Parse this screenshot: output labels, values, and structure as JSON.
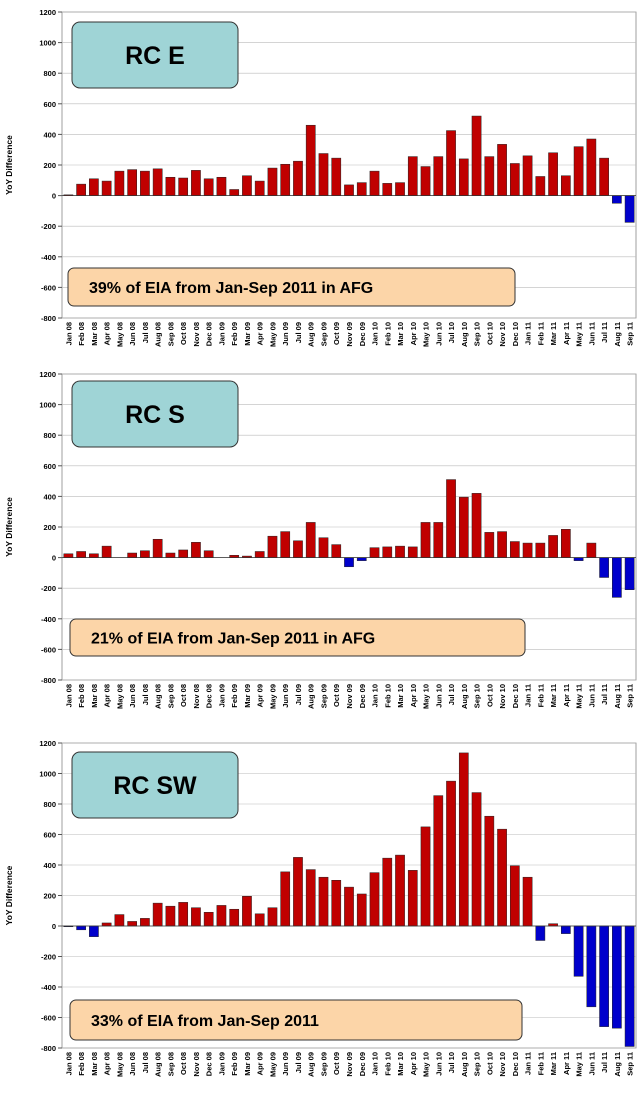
{
  "chart_data": [
    {
      "type": "bar",
      "title": "RC E",
      "annotation": "39% of EIA from Jan-Sep 2011 in AFG",
      "y_label": "YoY Difference",
      "categories": [
        "Jan 08",
        "Feb 08",
        "Mar 08",
        "Apr 08",
        "May 08",
        "Jun 08",
        "Jul 08",
        "Aug 08",
        "Sep 08",
        "Oct 08",
        "Nov 08",
        "Dec 08",
        "Jan 09",
        "Feb 09",
        "Mar 09",
        "Apr 09",
        "May 09",
        "Jun 09",
        "Jul 09",
        "Aug 09",
        "Sep 09",
        "Oct 09",
        "Nov 09",
        "Dec 09",
        "Jan 10",
        "Feb 10",
        "Mar 10",
        "Apr 10",
        "May 10",
        "Jun 10",
        "Jul 10",
        "Aug 10",
        "Sep 10",
        "Oct 10",
        "Nov 10",
        "Dec 10",
        "Jan 11",
        "Feb 11",
        "Mar 11",
        "Apr 11",
        "May 11",
        "Jun 11",
        "Jul 11",
        "Aug 11",
        "Sep 11"
      ],
      "values": [
        5,
        75,
        110,
        95,
        160,
        170,
        160,
        175,
        120,
        115,
        165,
        110,
        120,
        40,
        130,
        95,
        180,
        205,
        225,
        460,
        275,
        245,
        70,
        85,
        160,
        80,
        85,
        255,
        190,
        255,
        425,
        240,
        520,
        255,
        335,
        210,
        260,
        125,
        280,
        130,
        320,
        370,
        245,
        -50,
        -175
      ],
      "color": "#c00000",
      "negative_color": "#0000cc",
      "ylim": [
        -800,
        1200
      ],
      "yticks": [
        -800,
        -600,
        -400,
        -200,
        0,
        200,
        400,
        600,
        800,
        1000,
        1200
      ],
      "grid": true
    },
    {
      "type": "bar",
      "title": "RC S",
      "annotation": "21% of EIA from Jan-Sep 2011 in AFG",
      "y_label": "YoY Difference",
      "categories": [
        "Jan 08",
        "Feb 08",
        "Mar 08",
        "Apr 08",
        "May 08",
        "Jun 08",
        "Jul 08",
        "Aug 08",
        "Sep 08",
        "Oct 08",
        "Nov 08",
        "Dec 08",
        "Jan 09",
        "Feb 09",
        "Mar 09",
        "Apr 09",
        "May 09",
        "Jun 09",
        "Jul 09",
        "Aug 09",
        "Sep 09",
        "Oct 09",
        "Nov 09",
        "Dec 09",
        "Jan 10",
        "Feb 10",
        "Mar 10",
        "Apr 10",
        "May 10",
        "Jun 10",
        "Jul 10",
        "Aug 10",
        "Sep 10",
        "Oct 10",
        "Nov 10",
        "Dec 10",
        "Jan 11",
        "Feb 11",
        "Mar 11",
        "Apr 11",
        "May 11",
        "Jun 11",
        "Jul 11",
        "Aug 11",
        "Sep 11"
      ],
      "values": [
        25,
        40,
        25,
        75,
        0,
        30,
        45,
        120,
        30,
        50,
        100,
        45,
        0,
        15,
        10,
        40,
        140,
        170,
        110,
        230,
        130,
        85,
        -60,
        -20,
        65,
        70,
        75,
        70,
        230,
        230,
        510,
        395,
        420,
        165,
        170,
        105,
        95,
        95,
        145,
        185,
        -20,
        95,
        -130,
        -260,
        -210
      ],
      "color": "#c00000",
      "negative_color": "#0000cc",
      "ylim": [
        -800,
        1200
      ],
      "yticks": [
        -800,
        -600,
        -400,
        -200,
        0,
        200,
        400,
        600,
        800,
        1000,
        1200
      ],
      "grid": true
    },
    {
      "type": "bar",
      "title": "RC SW",
      "annotation": "33% of EIA from Jan-Sep 2011",
      "y_label": "YoY Difference",
      "categories": [
        "Jan 08",
        "Feb 08",
        "Mar 08",
        "Apr 08",
        "May 08",
        "Jun 08",
        "Jul 08",
        "Aug 08",
        "Sep 08",
        "Oct 08",
        "Nov 08",
        "Dec 08",
        "Jan 09",
        "Feb 09",
        "Mar 09",
        "Apr 09",
        "May 09",
        "Jun 09",
        "Jul 09",
        "Aug 09",
        "Sep 09",
        "Oct 09",
        "Nov 09",
        "Dec 09",
        "Jan 10",
        "Feb 10",
        "Mar 10",
        "Apr 10",
        "May 10",
        "Jun 10",
        "Jul 10",
        "Aug 10",
        "Sep 10",
        "Oct 10",
        "Nov 10",
        "Dec 10",
        "Jan 11",
        "Feb 11",
        "Mar 11",
        "Apr 11",
        "May 11",
        "Jun 11",
        "Jul 11",
        "Aug 11",
        "Sep 11"
      ],
      "values": [
        -5,
        -25,
        -70,
        20,
        75,
        30,
        50,
        150,
        130,
        155,
        120,
        90,
        135,
        110,
        195,
        80,
        120,
        355,
        450,
        370,
        320,
        300,
        255,
        210,
        350,
        445,
        465,
        365,
        650,
        855,
        950,
        1135,
        875,
        720,
        635,
        395,
        320,
        -95,
        15,
        -50,
        -330,
        -530,
        -660,
        -670,
        -790
      ],
      "color": "#c00000",
      "negative_color": "#0000cc",
      "ylim": [
        -800,
        1200
      ],
      "yticks": [
        -800,
        -600,
        -400,
        -200,
        0,
        200,
        400,
        600,
        800,
        1000,
        1200
      ],
      "grid": true
    }
  ]
}
